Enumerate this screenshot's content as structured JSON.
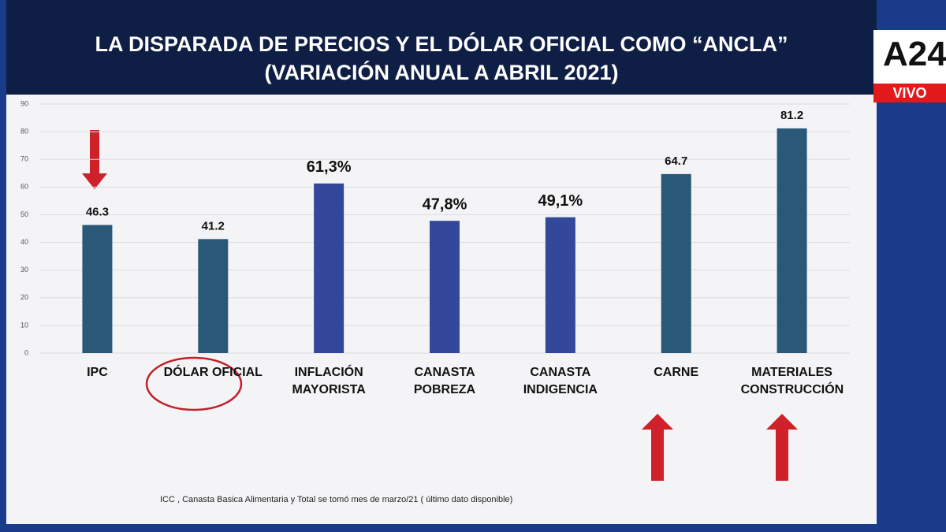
{
  "chart_data": {
    "type": "bar",
    "title": "LA DISPARADA DE PRECIOS Y EL DÓLAR OFICIAL COMO “ANCLA”",
    "subtitle": "(VARIACIÓN ANUAL A ABRIL 2021)",
    "categories": [
      "IPC",
      "DÓLAR OFICIAL",
      "INFLACIÓN MAYORISTA",
      "CANASTA POBREZA",
      "CANASTA INDIGENCIA",
      "CARNE",
      "MATERIALES CONSTRUCCIÓN"
    ],
    "values": [
      46.3,
      41.2,
      61.3,
      47.8,
      49.1,
      64.7,
      81.2
    ],
    "value_labels": [
      "46.3",
      "41.2",
      "61,3%",
      "47,8%",
      "49,1%",
      "64.7",
      "81.2"
    ],
    "colors": [
      "#2a5878",
      "#2a5878",
      "#33489a",
      "#33489a",
      "#33489a",
      "#2a5878",
      "#2a5878"
    ],
    "ylim": [
      0,
      90
    ],
    "yticks": [
      0,
      10,
      20,
      30,
      40,
      50,
      60,
      70,
      80,
      90
    ],
    "grid": true,
    "note": "ICC , Canasta Basica Alimentaria y Total se tomó mes de marzo/21 ( último dato disponible)"
  },
  "logo": {
    "brand": "A24",
    "live": "VIVO"
  }
}
